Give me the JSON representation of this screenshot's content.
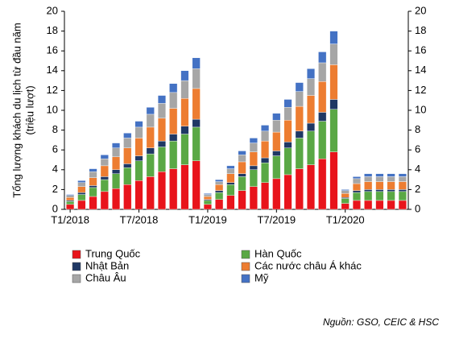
{
  "chart_data": {
    "type": "stacked_bar",
    "y_label": [
      "Tổng lượng khách du lịch từ đầu năm",
      "(triệu lượt)"
    ],
    "categories": [
      "T1/2018",
      null,
      null,
      null,
      null,
      null,
      "T7/2018",
      null,
      null,
      null,
      null,
      null,
      "T1/2019",
      null,
      null,
      null,
      null,
      null,
      "T7/2019",
      null,
      null,
      null,
      null,
      null,
      "T1/2020",
      null,
      null,
      null,
      null,
      null
    ],
    "series": [
      {
        "name": "Trung Quốc",
        "color": "#e8141b",
        "values": [
          0.5,
          0.9,
          1.3,
          1.8,
          2.1,
          2.5,
          2.9,
          3.3,
          3.8,
          4.1,
          4.5,
          4.9,
          0.5,
          1.0,
          1.4,
          1.9,
          2.3,
          2.7,
          3.1,
          3.5,
          4.1,
          4.5,
          5.1,
          5.8,
          0.6,
          0.9,
          0.9,
          0.9,
          0.9,
          0.9
        ]
      },
      {
        "name": "Hàn Quốc",
        "color": "#5aa845",
        "values": [
          0.3,
          0.6,
          0.9,
          1.2,
          1.5,
          1.7,
          2.0,
          2.3,
          2.5,
          2.8,
          3.1,
          3.4,
          0.4,
          0.7,
          1.1,
          1.4,
          1.7,
          2.0,
          2.3,
          2.7,
          3.1,
          3.4,
          3.8,
          4.3,
          0.5,
          0.8,
          0.9,
          0.9,
          0.9,
          0.9
        ]
      },
      {
        "name": "Nhật Bản",
        "color": "#1f3864",
        "values": [
          0.1,
          0.2,
          0.2,
          0.3,
          0.4,
          0.4,
          0.5,
          0.6,
          0.6,
          0.7,
          0.8,
          0.8,
          0.1,
          0.2,
          0.2,
          0.3,
          0.4,
          0.5,
          0.5,
          0.6,
          0.7,
          0.8,
          0.9,
          1.0,
          0.1,
          0.2,
          0.2,
          0.2,
          0.2,
          0.2
        ]
      },
      {
        "name": "Các nước châu Á khác",
        "color": "#ed7d31",
        "values": [
          0.3,
          0.6,
          0.8,
          1.1,
          1.3,
          1.6,
          1.8,
          2.1,
          2.3,
          2.6,
          2.8,
          3.1,
          0.3,
          0.6,
          0.9,
          1.2,
          1.4,
          1.7,
          1.9,
          2.2,
          2.5,
          2.8,
          3.1,
          3.5,
          0.4,
          0.7,
          0.8,
          0.8,
          0.8,
          0.8
        ]
      },
      {
        "name": "Châu Âu",
        "color": "#a6a6a6",
        "values": [
          0.2,
          0.4,
          0.6,
          0.7,
          0.9,
          1.0,
          1.1,
          1.3,
          1.5,
          1.6,
          1.8,
          2.0,
          0.2,
          0.3,
          0.5,
          0.7,
          0.9,
          1.0,
          1.2,
          1.3,
          1.5,
          1.7,
          1.9,
          2.1,
          0.3,
          0.5,
          0.5,
          0.5,
          0.5,
          0.5
        ]
      },
      {
        "name": "Mỹ",
        "color": "#4472c4",
        "values": [
          0.1,
          0.2,
          0.3,
          0.4,
          0.5,
          0.5,
          0.6,
          0.7,
          0.8,
          0.9,
          1.0,
          1.1,
          0.1,
          0.2,
          0.3,
          0.4,
          0.5,
          0.6,
          0.7,
          0.8,
          0.9,
          1.0,
          1.1,
          1.3,
          0.1,
          0.2,
          0.3,
          0.3,
          0.3,
          0.3
        ]
      }
    ],
    "ylim": [
      0,
      20
    ],
    "yticks": [
      0,
      2,
      4,
      6,
      8,
      10,
      12,
      14,
      16,
      18,
      20
    ],
    "source": "Nguồn: GSO, CEIC & HSC"
  }
}
